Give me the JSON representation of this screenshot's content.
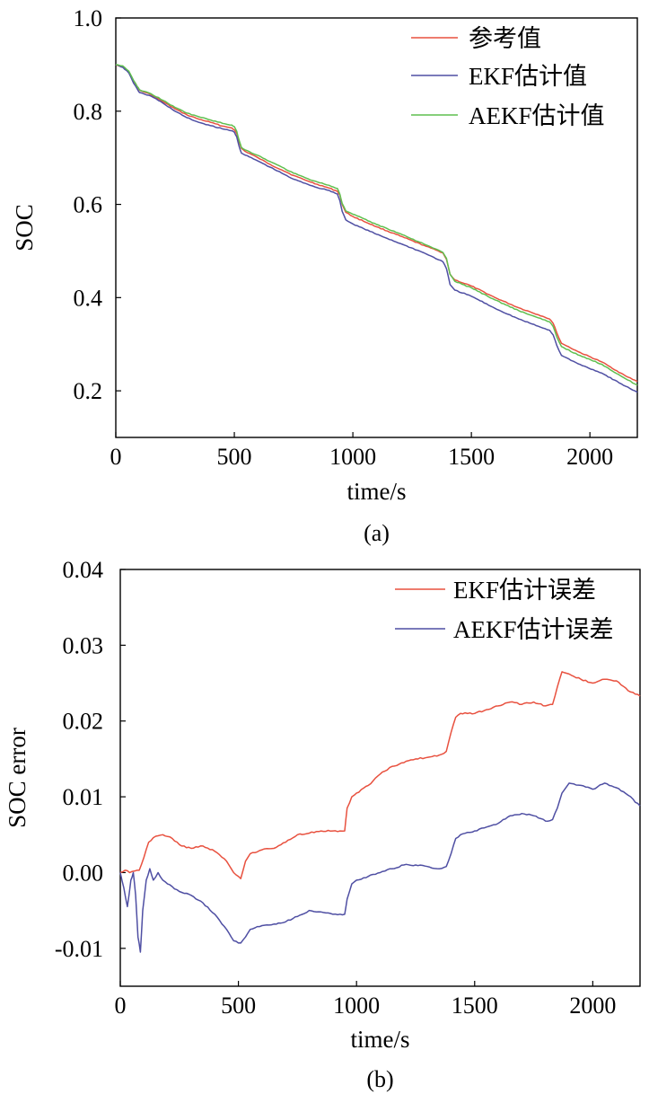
{
  "chart_data": [
    {
      "type": "line",
      "panel": "(a)",
      "caption": "(a)",
      "xlabel": "time/s",
      "ylabel": "SOC",
      "xlim": [
        0,
        2200
      ],
      "ylim": [
        0.1,
        1.0
      ],
      "xticks": [
        0,
        500,
        1000,
        1500,
        2000
      ],
      "xtick_labels": [
        "0",
        "500",
        "1000",
        "1500",
        "2000"
      ],
      "yticks": [
        0.2,
        0.4,
        0.6,
        0.8,
        1.0
      ],
      "ytick_labels": [
        "0.2",
        "0.4",
        "0.6",
        "0.8",
        "1.0"
      ],
      "legend_position": "top-right",
      "series": [
        {
          "name": "参考值",
          "color": "#e8513f",
          "x": [
            0,
            30,
            55,
            75,
            90,
            100,
            150,
            200,
            250,
            300,
            350,
            400,
            450,
            490,
            500,
            510,
            520,
            530,
            545,
            600,
            650,
            700,
            750,
            800,
            850,
            900,
            935,
            945,
            955,
            970,
            1000,
            1100,
            1200,
            1300,
            1380,
            1395,
            1410,
            1430,
            1500,
            1600,
            1700,
            1800,
            1830,
            1845,
            1860,
            1880,
            1950,
            2050,
            2150,
            2200
          ],
          "y": [
            0.9,
            0.895,
            0.885,
            0.865,
            0.853,
            0.845,
            0.835,
            0.82,
            0.805,
            0.792,
            0.783,
            0.776,
            0.768,
            0.764,
            0.76,
            0.752,
            0.735,
            0.72,
            0.714,
            0.7,
            0.686,
            0.674,
            0.662,
            0.652,
            0.643,
            0.635,
            0.628,
            0.62,
            0.6,
            0.583,
            0.574,
            0.552,
            0.532,
            0.512,
            0.496,
            0.482,
            0.45,
            0.438,
            0.425,
            0.4,
            0.378,
            0.36,
            0.354,
            0.345,
            0.325,
            0.302,
            0.284,
            0.262,
            0.232,
            0.22
          ]
        },
        {
          "name": "EKF估计值",
          "color": "#4f4fa3",
          "x": [
            0,
            30,
            55,
            75,
            90,
            100,
            150,
            200,
            250,
            300,
            350,
            400,
            450,
            490,
            500,
            510,
            520,
            530,
            545,
            600,
            650,
            700,
            750,
            800,
            850,
            900,
            935,
            945,
            955,
            970,
            1000,
            1100,
            1200,
            1300,
            1380,
            1395,
            1410,
            1430,
            1500,
            1600,
            1700,
            1800,
            1830,
            1845,
            1860,
            1880,
            1950,
            2050,
            2150,
            2200
          ],
          "y": [
            0.9,
            0.894,
            0.882,
            0.86,
            0.848,
            0.84,
            0.832,
            0.817,
            0.8,
            0.786,
            0.776,
            0.769,
            0.762,
            0.758,
            0.755,
            0.745,
            0.725,
            0.71,
            0.706,
            0.693,
            0.68,
            0.667,
            0.654,
            0.645,
            0.636,
            0.63,
            0.622,
            0.608,
            0.585,
            0.567,
            0.558,
            0.536,
            0.516,
            0.496,
            0.477,
            0.462,
            0.428,
            0.416,
            0.403,
            0.377,
            0.354,
            0.335,
            0.33,
            0.32,
            0.298,
            0.276,
            0.258,
            0.238,
            0.21,
            0.197
          ]
        },
        {
          "name": "AEKF估计值",
          "color": "#5fbf4f",
          "x": [
            0,
            30,
            55,
            75,
            90,
            100,
            150,
            200,
            250,
            300,
            350,
            400,
            450,
            490,
            500,
            510,
            520,
            530,
            545,
            600,
            650,
            700,
            750,
            800,
            850,
            900,
            935,
            945,
            955,
            970,
            1000,
            1100,
            1200,
            1300,
            1380,
            1395,
            1410,
            1430,
            1500,
            1600,
            1700,
            1800,
            1830,
            1845,
            1860,
            1880,
            1950,
            2050,
            2150,
            2200
          ],
          "y": [
            0.9,
            0.897,
            0.886,
            0.866,
            0.853,
            0.846,
            0.837,
            0.823,
            0.808,
            0.796,
            0.788,
            0.781,
            0.774,
            0.77,
            0.767,
            0.757,
            0.738,
            0.722,
            0.717,
            0.705,
            0.692,
            0.68,
            0.667,
            0.657,
            0.648,
            0.641,
            0.634,
            0.622,
            0.602,
            0.586,
            0.579,
            0.557,
            0.537,
            0.515,
            0.497,
            0.484,
            0.45,
            0.435,
            0.421,
            0.395,
            0.372,
            0.353,
            0.348,
            0.338,
            0.316,
            0.295,
            0.277,
            0.257,
            0.226,
            0.212
          ]
        }
      ]
    },
    {
      "type": "line",
      "panel": "(b)",
      "caption": "(b)",
      "xlabel": "time/s",
      "ylabel": "SOC error",
      "xlim": [
        0,
        2200
      ],
      "ylim": [
        -0.015,
        0.04
      ],
      "xticks": [
        0,
        500,
        1000,
        1500,
        2000
      ],
      "xtick_labels": [
        "0",
        "500",
        "1000",
        "1500",
        "2000"
      ],
      "yticks": [
        -0.01,
        0.0,
        0.01,
        0.02,
        0.03,
        0.04
      ],
      "ytick_labels": [
        "-0.01",
        "0.00",
        "0.01",
        "0.02",
        "0.03",
        "0.04"
      ],
      "legend_position": "top-right",
      "series": [
        {
          "name": "EKF估计误差",
          "color": "#e8513f",
          "x": [
            0,
            20,
            40,
            60,
            80,
            100,
            120,
            150,
            180,
            220,
            260,
            300,
            350,
            400,
            450,
            480,
            500,
            510,
            530,
            550,
            600,
            650,
            700,
            750,
            800,
            850,
            900,
            950,
            960,
            980,
            1000,
            1050,
            1100,
            1150,
            1200,
            1250,
            1300,
            1350,
            1380,
            1400,
            1420,
            1440,
            1500,
            1550,
            1600,
            1650,
            1700,
            1750,
            1800,
            1830,
            1850,
            1870,
            1900,
            1950,
            2000,
            2050,
            2100,
            2150,
            2200
          ],
          "y": [
            0.0,
            0.0003,
            0.0,
            0.0002,
            0.0003,
            0.002,
            0.004,
            0.0048,
            0.005,
            0.0045,
            0.0035,
            0.0032,
            0.0035,
            0.0028,
            0.0015,
            0.0,
            -0.0005,
            -0.0008,
            0.0015,
            0.0025,
            0.003,
            0.0032,
            0.004,
            0.005,
            0.0052,
            0.0055,
            0.0055,
            0.0055,
            0.0085,
            0.01,
            0.0105,
            0.0115,
            0.013,
            0.014,
            0.0145,
            0.015,
            0.0152,
            0.0155,
            0.016,
            0.0185,
            0.0205,
            0.021,
            0.021,
            0.0215,
            0.022,
            0.0225,
            0.0222,
            0.0225,
            0.022,
            0.0222,
            0.0245,
            0.0265,
            0.0262,
            0.0255,
            0.025,
            0.0255,
            0.0253,
            0.024,
            0.0233
          ]
        },
        {
          "name": "AEKF估计误差",
          "color": "#4f4fa3",
          "x": [
            0,
            15,
            30,
            45,
            55,
            65,
            75,
            85,
            95,
            110,
            125,
            140,
            160,
            180,
            200,
            250,
            300,
            350,
            400,
            450,
            480,
            500,
            510,
            530,
            550,
            600,
            650,
            700,
            750,
            800,
            850,
            900,
            950,
            960,
            980,
            1000,
            1050,
            1100,
            1150,
            1200,
            1250,
            1300,
            1350,
            1380,
            1400,
            1420,
            1440,
            1500,
            1550,
            1600,
            1650,
            1700,
            1750,
            1800,
            1830,
            1850,
            1870,
            1900,
            1950,
            2000,
            2050,
            2100,
            2150,
            2200
          ],
          "y": [
            0.0,
            -0.002,
            -0.0045,
            -0.001,
            0.0,
            -0.003,
            -0.0085,
            -0.0105,
            -0.005,
            -0.001,
            0.0005,
            -0.001,
            0.0,
            -0.001,
            -0.0015,
            -0.0025,
            -0.003,
            -0.004,
            -0.0055,
            -0.0075,
            -0.009,
            -0.0093,
            -0.0093,
            -0.0085,
            -0.0075,
            -0.007,
            -0.0068,
            -0.0065,
            -0.0058,
            -0.005,
            -0.0052,
            -0.0055,
            -0.0055,
            -0.0035,
            -0.0015,
            -0.001,
            -0.0005,
            0.0,
            0.0005,
            0.001,
            0.001,
            0.0008,
            0.0005,
            0.0008,
            0.0025,
            0.0045,
            0.005,
            0.0055,
            0.006,
            0.0065,
            0.0075,
            0.0078,
            0.0075,
            0.0068,
            0.007,
            0.0085,
            0.0105,
            0.0118,
            0.0115,
            0.011,
            0.0118,
            0.0112,
            0.0102,
            0.0088
          ]
        }
      ]
    }
  ]
}
